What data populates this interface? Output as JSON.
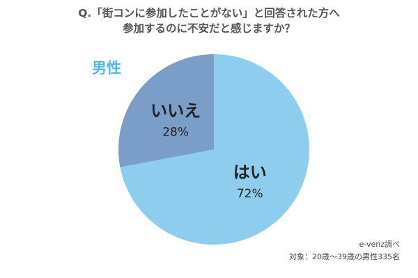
{
  "title": {
    "line1": "Q.「街コンに参加したことがない」と回答された方へ",
    "line2": "参加するのに不安だと感じますか？"
  },
  "group_label": "男性",
  "source": {
    "line1": "e-venz調べ",
    "line2": "対象：20歳〜39歳の男性335名"
  },
  "colors": {
    "yes": "#8fcdee",
    "no": "#7b9ec9",
    "group_label": "#4fb8e6"
  },
  "chart_data": {
    "type": "pie",
    "start_angle_deg": 0,
    "direction": "clockwise",
    "slices": [
      {
        "label": "はい",
        "value": 72,
        "value_label": "72%"
      },
      {
        "label": "いいえ",
        "value": 28,
        "value_label": "28%"
      }
    ]
  }
}
